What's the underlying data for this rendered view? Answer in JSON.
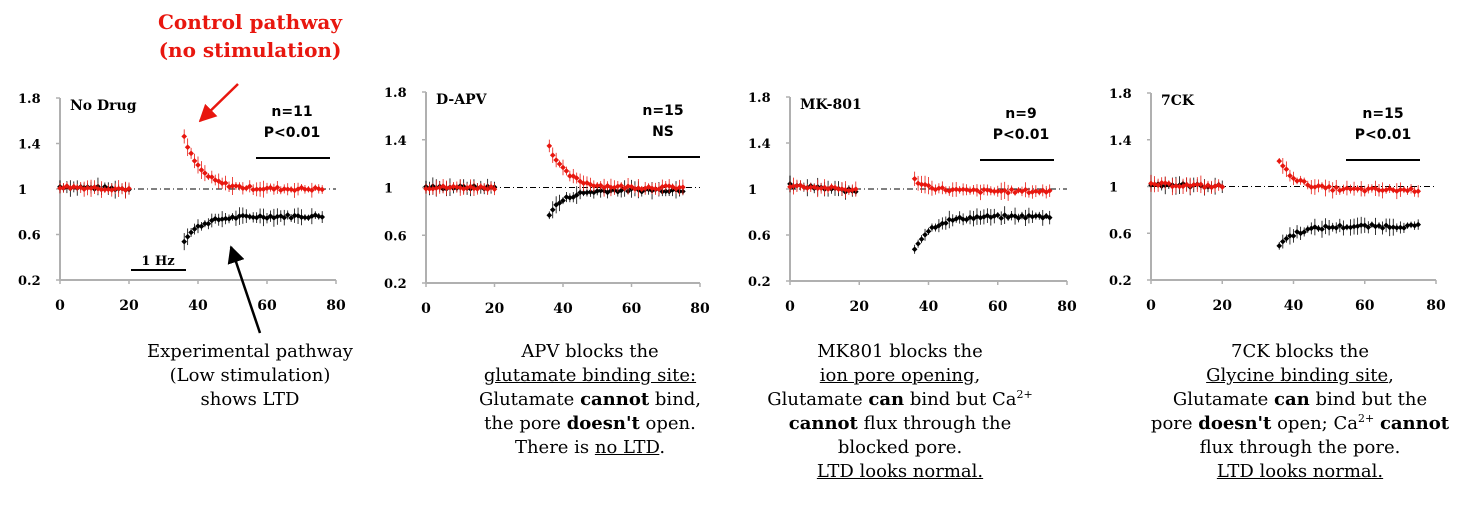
{
  "colors": {
    "red": "#e8170f",
    "black": "#000000",
    "axis": "#b0b0b0"
  },
  "annotations": {
    "control_line1": "Control pathway",
    "control_line2": "(no stimulation)",
    "exp_line1": "Experimental pathway",
    "exp_line2": "(Low stimulation)",
    "exp_line3": "shows LTD",
    "bar_label": "1 Hz"
  },
  "captions": [
    {
      "l1": "APV blocks the",
      "l2": "glutamate binding site:",
      "l3a": "Glutamate ",
      "l3b": "cannot",
      "l3c": " bind,",
      "l4a": "the pore ",
      "l4b": "doesn't",
      "l4c": " open.",
      "l5a": "There is ",
      "l5b": "no LTD",
      "l5c": "."
    },
    {
      "l1": "MK801 blocks the",
      "l2": "ion pore opening",
      "l2b": ",",
      "l3a": "Glutamate ",
      "l3b": "can",
      "l3c": " bind but Ca",
      "l3sup": "2+",
      "l4a": "cannot",
      "l4b": " flux through the",
      "l5": "blocked pore.",
      "l6": "LTD looks normal."
    },
    {
      "l1": "7CK blocks the",
      "l2": "Glycine binding site",
      "l2b": ",",
      "l3a": "Glutamate ",
      "l3b": "can",
      "l3c": " bind but the",
      "l4a": "pore ",
      "l4b": "doesn't",
      "l4c": " open; Ca",
      "l4sup": "2+",
      "l4d": " ",
      "l4e": "cannot",
      "l5": "flux through the pore.",
      "l6": "LTD looks normal."
    }
  ],
  "chart_data": [
    {
      "type": "scatter",
      "title": "No Drug",
      "stat_n": "n=11",
      "stat_p": "P<0.01",
      "xlim": [
        0,
        80
      ],
      "ylim": [
        0.2,
        1.8
      ],
      "xticks": [
        "0",
        "20",
        "40",
        "60",
        "80"
      ],
      "yticks": [
        "0.2",
        "0.6",
        "1",
        "1.4",
        "1.8"
      ],
      "baseline": 1,
      "series": [
        {
          "color": "red",
          "segments": [
            [
              0,
              20,
              1.02,
              1.0,
              0
            ],
            [
              36,
              76,
              1.45,
              1.0,
              0.25
            ]
          ]
        },
        {
          "color": "black",
          "segments": [
            [
              0,
              20,
              1.02,
              1.0,
              0
            ],
            [
              36,
              76,
              0.55,
              0.76,
              -0.2
            ]
          ]
        }
      ]
    },
    {
      "type": "scatter",
      "title": "D-APV",
      "stat_n": "n=15",
      "stat_p": "NS",
      "xlim": [
        0,
        80
      ],
      "ylim": [
        0.2,
        1.8
      ],
      "xticks": [
        "0",
        "20",
        "40",
        "60",
        "80"
      ],
      "yticks": [
        "0.2",
        "0.6",
        "1",
        "1.4",
        "1.8"
      ],
      "baseline": 1,
      "series": [
        {
          "color": "red",
          "segments": [
            [
              0,
              20,
              1.0,
              1.0,
              0
            ],
            [
              36,
              75,
              1.35,
              1.0,
              0.3
            ]
          ]
        },
        {
          "color": "black",
          "segments": [
            [
              0,
              20,
              1.0,
              1.0,
              0
            ],
            [
              36,
              75,
              0.78,
              0.98,
              -0.2
            ]
          ]
        }
      ]
    },
    {
      "type": "scatter",
      "title": "MK-801",
      "stat_n": "n=9",
      "stat_p": "P<0.01",
      "xlim": [
        0,
        80
      ],
      "ylim": [
        0.2,
        1.8
      ],
      "xticks": [
        "0",
        "20",
        "40",
        "60",
        "80"
      ],
      "yticks": [
        "0.2",
        "0.6",
        "1",
        "1.4",
        "1.8"
      ],
      "baseline": 1,
      "series": [
        {
          "color": "red",
          "segments": [
            [
              0,
              19,
              1.03,
              0.99,
              0
            ],
            [
              36,
              75,
              1.08,
              0.98,
              0.3
            ]
          ]
        },
        {
          "color": "black",
          "segments": [
            [
              0,
              19,
              1.03,
              0.98,
              0
            ],
            [
              36,
              75,
              0.48,
              0.76,
              -0.2
            ]
          ]
        }
      ]
    },
    {
      "type": "scatter",
      "title": "7CK",
      "stat_n": "n=15",
      "stat_p": "P<0.01",
      "xlim": [
        0,
        80
      ],
      "ylim": [
        0.2,
        1.8
      ],
      "xticks": [
        "0",
        "20",
        "40",
        "60",
        "80"
      ],
      "yticks": [
        "0.2",
        "0.6",
        "1",
        "1.4",
        "1.8"
      ],
      "baseline": 1,
      "series": [
        {
          "color": "red",
          "segments": [
            [
              0,
              20,
              1.02,
              1.0,
              0
            ],
            [
              36,
              75,
              1.22,
              0.97,
              0.3
            ]
          ]
        },
        {
          "color": "black",
          "segments": [
            [
              0,
              20,
              1.02,
              1.0,
              0
            ],
            [
              36,
              75,
              0.5,
              0.66,
              -0.2
            ]
          ]
        }
      ]
    }
  ]
}
